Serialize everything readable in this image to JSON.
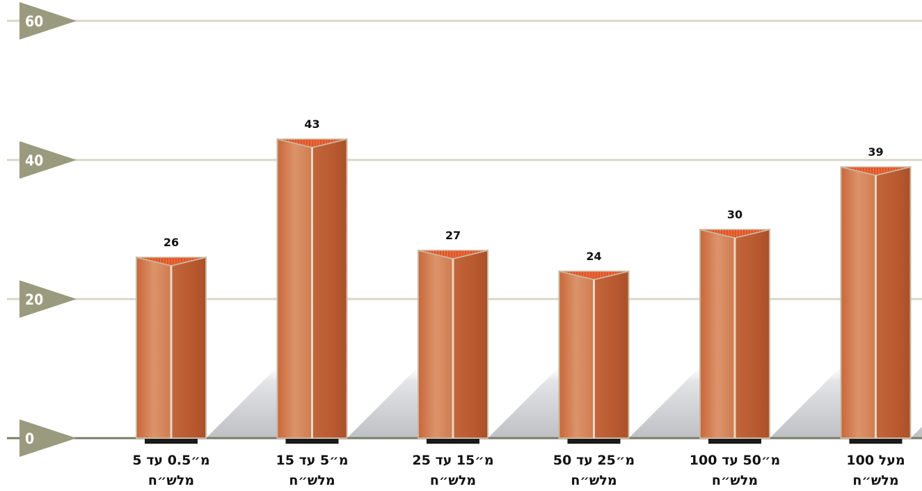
{
  "chart_data": {
    "type": "bar",
    "categories": [
      [
        "מ״0.5 עד 5",
        "מלש״ח"
      ],
      [
        "מ״5 עד 15",
        "מלש״ח"
      ],
      [
        "מ״15 עד 25",
        "מלש״ח"
      ],
      [
        "מ״25 עד 50",
        "מלש״ח"
      ],
      [
        "מ״50 עד 100",
        "מלש״ח"
      ],
      [
        "מעל 100",
        "מלש״ח"
      ]
    ],
    "values": [
      26,
      43,
      27,
      24,
      30,
      39
    ],
    "ylim": [
      0,
      60
    ],
    "yticks": [
      0,
      20,
      40,
      60
    ],
    "grid": true,
    "title": "",
    "xlabel": "",
    "ylabel": "",
    "colors": {
      "bar_light": "#d98a5e",
      "bar_dark": "#b8582f",
      "bar_edge": "#c9b8a0",
      "top_stripe": "#e8643a",
      "tick_marker": "#9a9a7e",
      "grid": "#d9d7c8",
      "baseline": "#7a7a6a",
      "shadow": "#b9bcc1",
      "base_block": "#1a1a1a"
    }
  }
}
